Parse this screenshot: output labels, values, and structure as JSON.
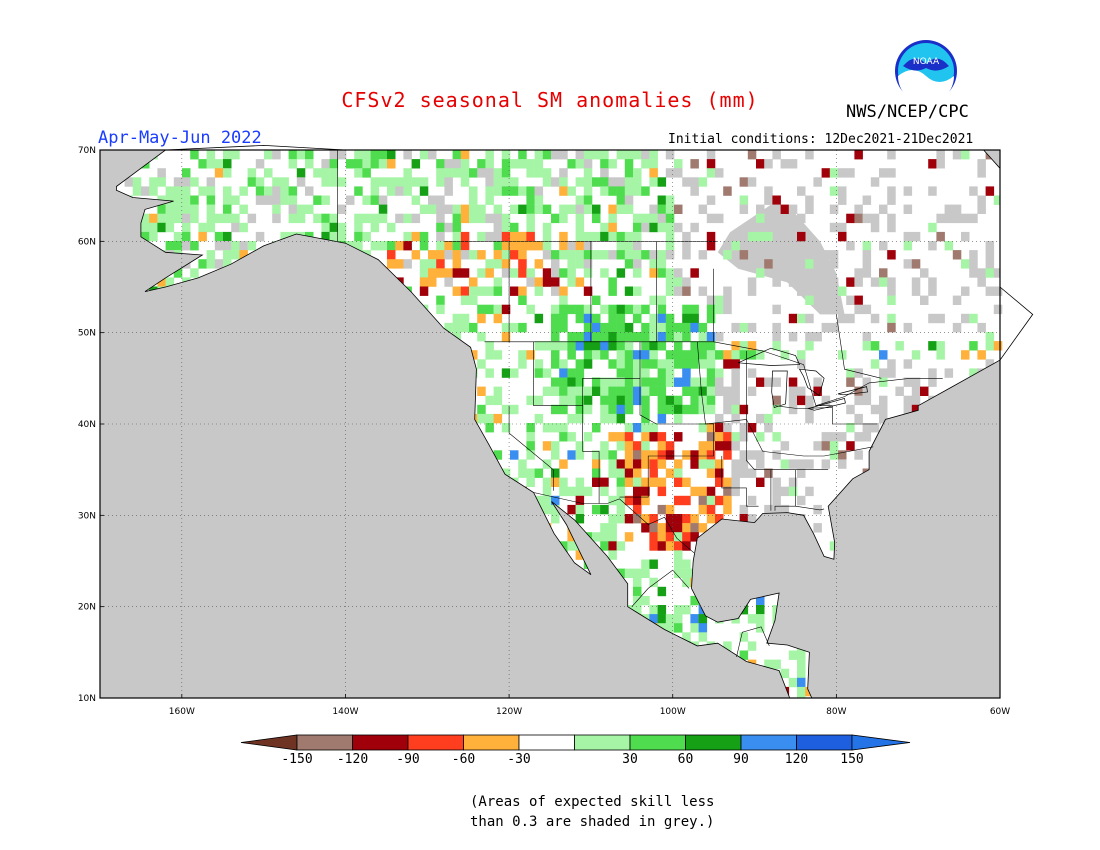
{
  "title": "CFSv2 seasonal SM anomalies (mm)",
  "org": "NWS/NCEP/CPC",
  "logo_text": "NOAA",
  "season": "Apr-May-Jun 2022",
  "initial_conditions": "Initial conditions: 12Dec2021-21Dec2021",
  "lat_labels": [
    "70N",
    "60N",
    "50N",
    "40N",
    "30N",
    "20N",
    "10N"
  ],
  "lon_labels": [
    "160W",
    "140W",
    "120W",
    "100W",
    "80W",
    "60W"
  ],
  "legend": {
    "labels": [
      "-150",
      "-120",
      "-90",
      "-60",
      "-30",
      "30",
      "60",
      "90",
      "120",
      "150"
    ],
    "colors": [
      "#6e3323",
      "#a07a6e",
      "#a0000a",
      "#ff3d1f",
      "#ffb13b",
      "#ffffff",
      "#a6f5a6",
      "#4fdd4f",
      "#15a015",
      "#3a8ef0",
      "#1e5fe0",
      "#2474e8"
    ]
  },
  "note_lines": [
    "(Areas of expected skill less",
    "than 0.3 are shaded in grey.)"
  ],
  "map": {
    "extent": {
      "lon": [
        -170,
        -60
      ],
      "lat": [
        10,
        70
      ]
    },
    "ocean_color": "#c8c8c8",
    "land_color": "#ffffff",
    "low_skill_color": "#c8c8c8"
  }
}
